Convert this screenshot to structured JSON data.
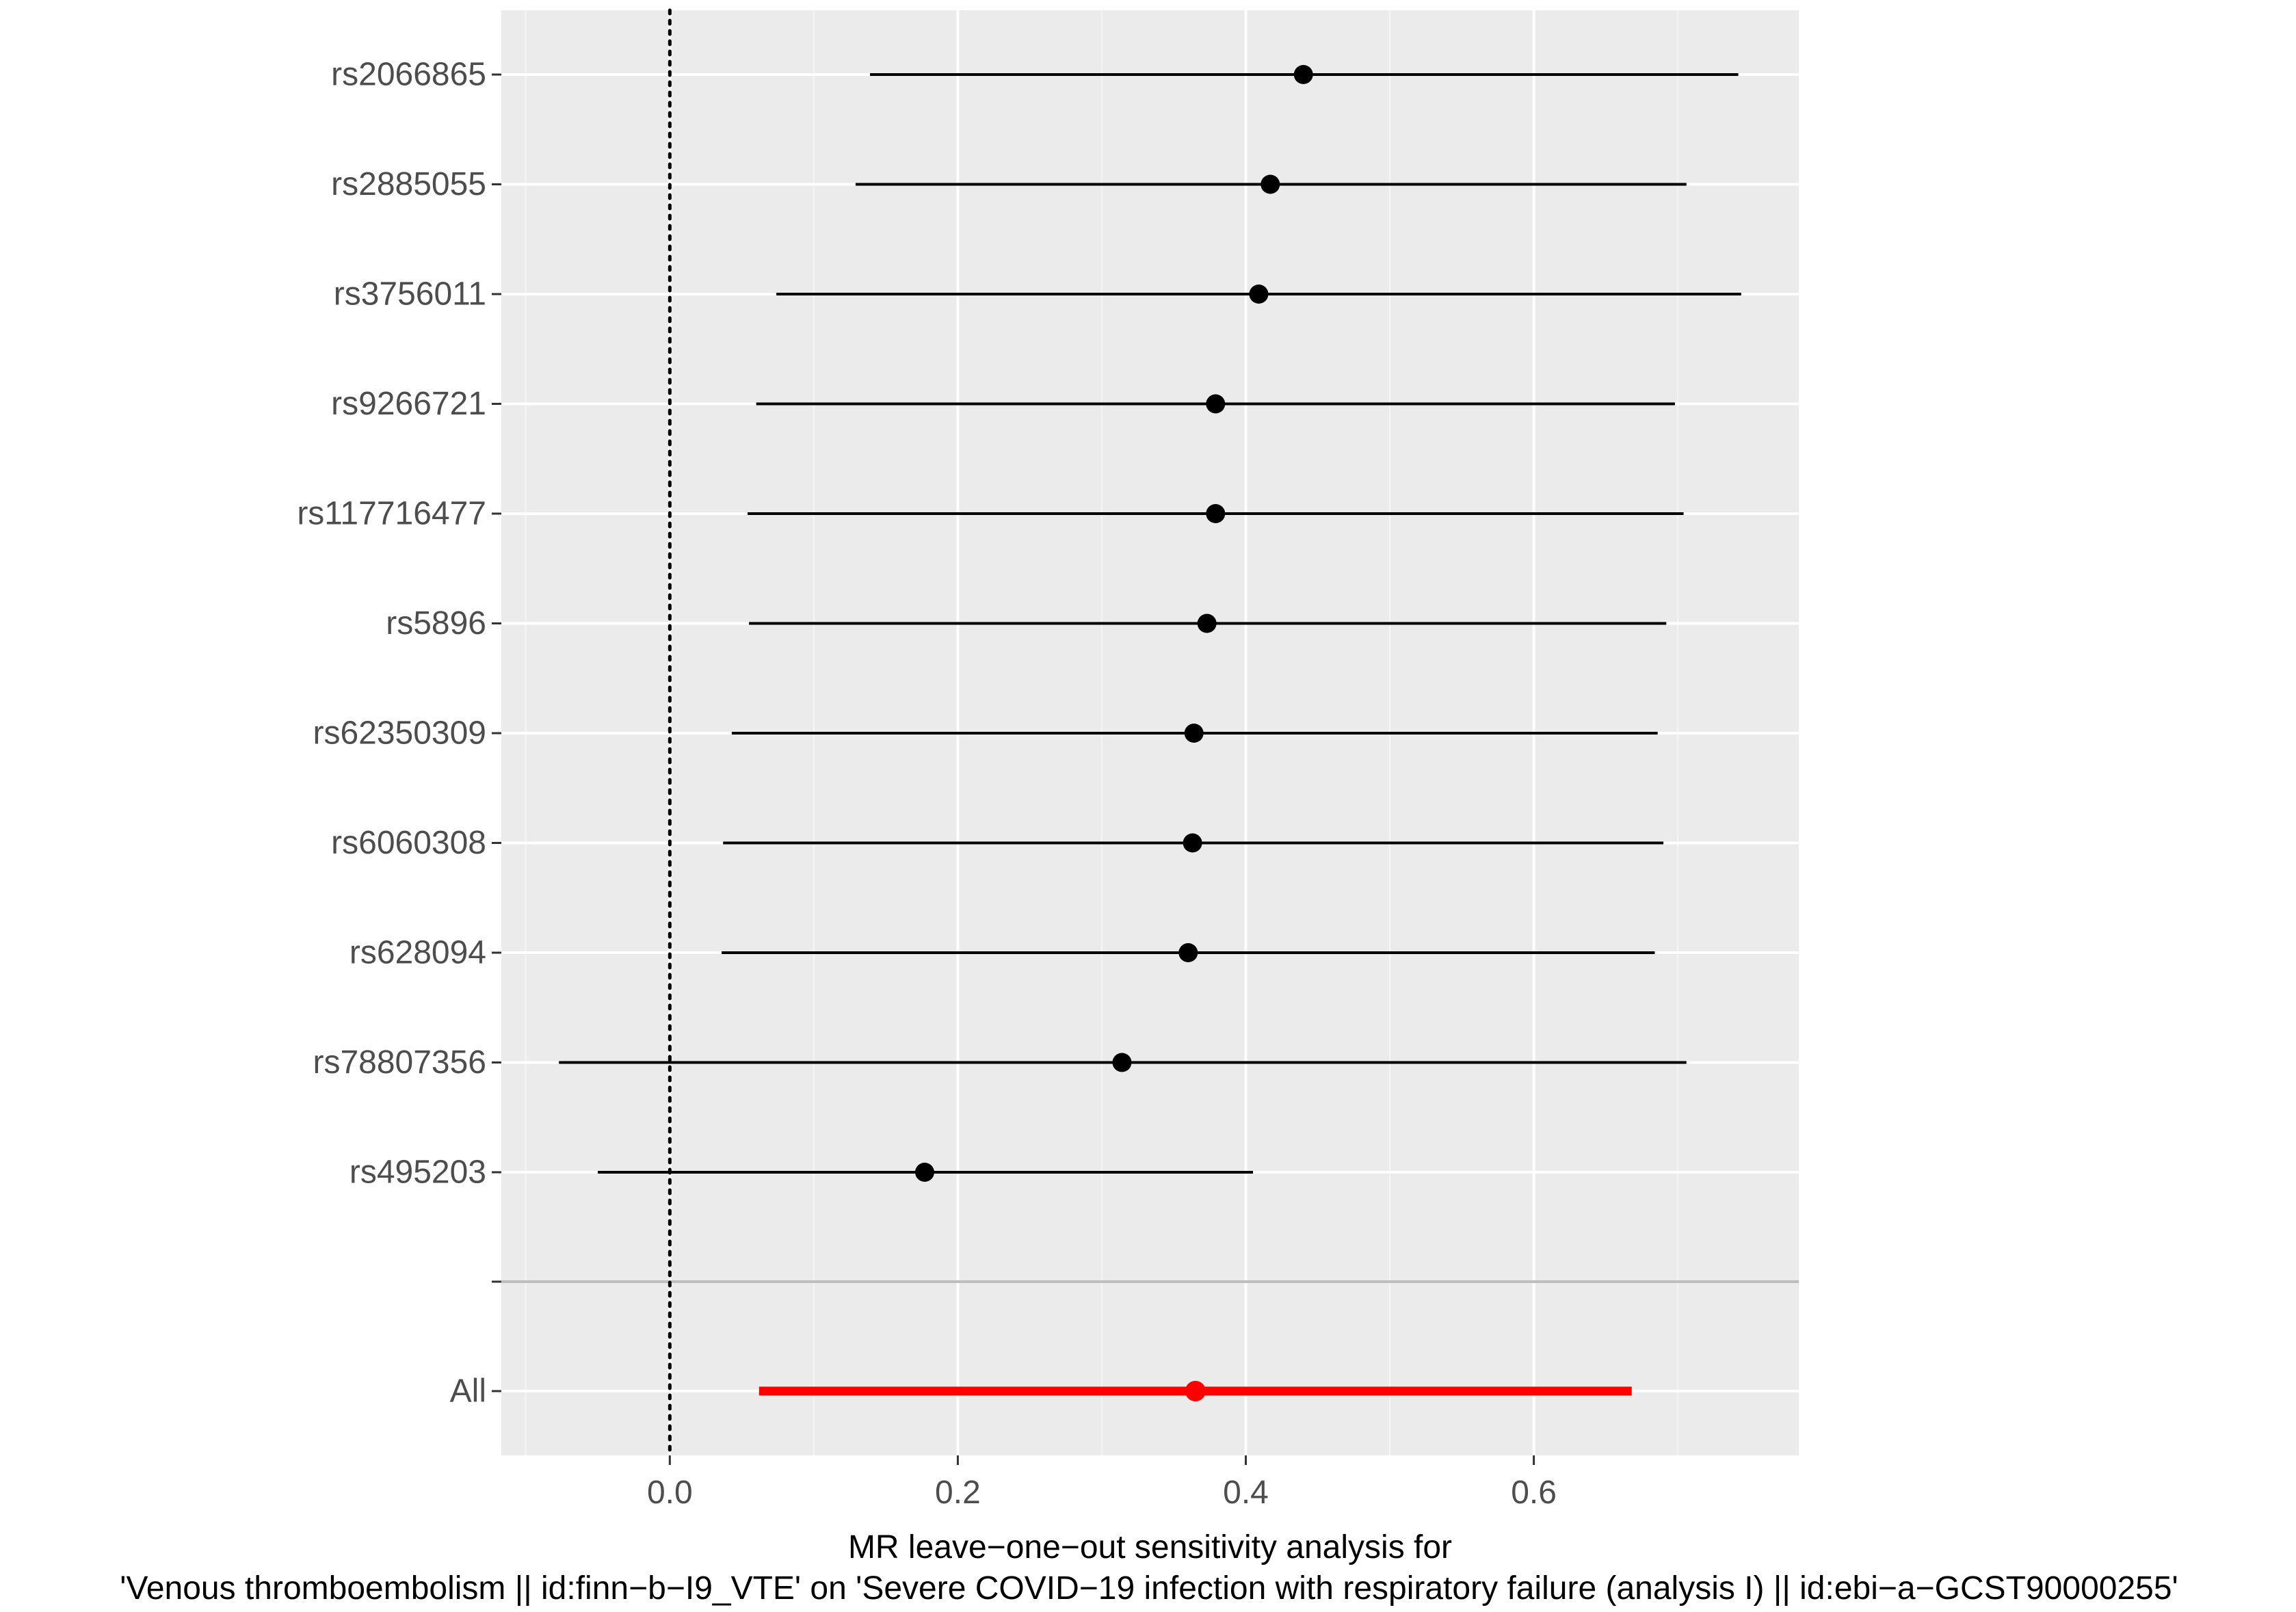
{
  "chart_data": {
    "type": "forest",
    "xlabel_line1": "MR leave−one−out sensitivity analysis for",
    "xlabel_line2": "'Venous thromboembolism || id:finn−b−I9_VTE' on 'Severe COVID−19 infection with respiratory failure (analysis I) || id:ebi−a−GCST90000255'",
    "xlim": [
      -0.117,
      0.784
    ],
    "x_ticks": [
      0.0,
      0.2,
      0.4,
      0.6
    ],
    "x_tick_labels": [
      "0.0",
      "0.2",
      "0.4",
      "0.6"
    ],
    "reference_line": 0,
    "grid": true,
    "snps": [
      {
        "label": "rs2066865",
        "b": 0.44,
        "lo": 0.139,
        "hi": 0.742
      },
      {
        "label": "rs2885055",
        "b": 0.417,
        "lo": 0.129,
        "hi": 0.706
      },
      {
        "label": "rs3756011",
        "b": 0.409,
        "lo": 0.074,
        "hi": 0.744
      },
      {
        "label": "rs9266721",
        "b": 0.379,
        "lo": 0.06,
        "hi": 0.698
      },
      {
        "label": "rs117716477",
        "b": 0.379,
        "lo": 0.054,
        "hi": 0.704
      },
      {
        "label": "rs5896",
        "b": 0.373,
        "lo": 0.055,
        "hi": 0.692
      },
      {
        "label": "rs62350309",
        "b": 0.364,
        "lo": 0.043,
        "hi": 0.686
      },
      {
        "label": "rs6060308",
        "b": 0.363,
        "lo": 0.037,
        "hi": 0.69
      },
      {
        "label": "rs628094",
        "b": 0.36,
        "lo": 0.036,
        "hi": 0.684
      },
      {
        "label": "rs78807356",
        "b": 0.314,
        "lo": -0.077,
        "hi": 0.706
      },
      {
        "label": "rs495203",
        "b": 0.177,
        "lo": -0.05,
        "hi": 0.405
      }
    ],
    "overall": {
      "label": "All",
      "b": 0.365,
      "lo": 0.062,
      "hi": 0.668
    },
    "colors": {
      "panel_bg": "#ebebeb",
      "grid_major": "#ffffff",
      "grid_minor": "#f5f5f5",
      "separator": "#bebebe",
      "snp": "#000000",
      "overall": "#ff0000",
      "tick_text": "#4d4d4d",
      "title_text": "#000000"
    }
  }
}
